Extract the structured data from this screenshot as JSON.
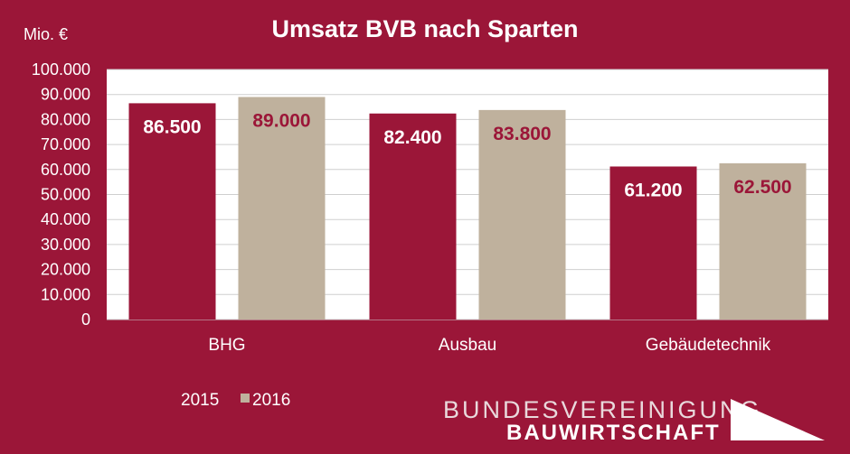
{
  "chart_data": {
    "type": "bar",
    "title": "Umsatz BVB nach Sparten",
    "unit_label": "Mio. €",
    "categories": [
      "BHG",
      "Ausbau",
      "Gebäudetechnik"
    ],
    "series": [
      {
        "name": "2015",
        "values": [
          86500,
          82400,
          61200
        ],
        "labels": [
          "86.500",
          "82.400",
          "61.200"
        ],
        "color": "#9b1638",
        "label_color": "#ffffff"
      },
      {
        "name": "2016",
        "values": [
          89000,
          83800,
          62500
        ],
        "labels": [
          "89.000",
          "83.800",
          "62.500"
        ],
        "color": "#bfb19d",
        "label_color": "#9b1638"
      }
    ],
    "ylim": [
      0,
      100000
    ],
    "yticks": [
      0,
      10000,
      20000,
      30000,
      40000,
      50000,
      60000,
      70000,
      80000,
      90000,
      100000
    ],
    "ytick_labels": [
      "0",
      "10.000",
      "20.000",
      "30.000",
      "40.000",
      "50.000",
      "60.000",
      "70.000",
      "80.000",
      "90.000",
      "100.000"
    ],
    "grid": true,
    "legend": "bottom-left",
    "plot_background": "#ffffff",
    "background": "#9b1638"
  },
  "logo": {
    "line1": "BUNDESVEREINIGUNG",
    "line2": "BAUWIRTSCHAFT"
  }
}
